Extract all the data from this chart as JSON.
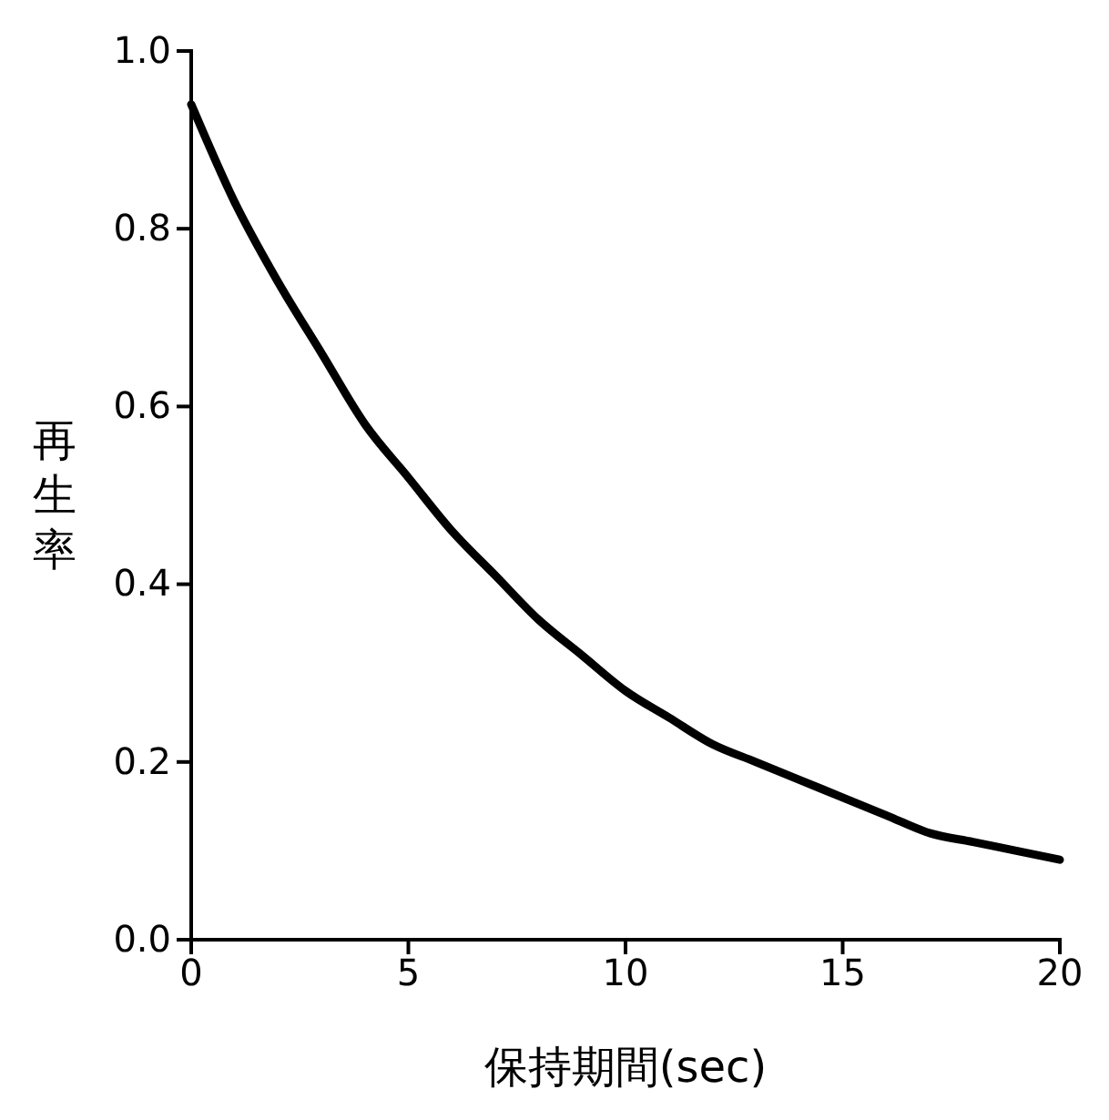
{
  "chart_data": {
    "type": "line",
    "xlabel": "保持期間(sec)",
    "ylabel": "再生率",
    "x": [
      0,
      1,
      2,
      3,
      4,
      5,
      6,
      7,
      8,
      9,
      10,
      11,
      12,
      13,
      14,
      15,
      16,
      17,
      18,
      19,
      20
    ],
    "series": [
      {
        "color": "#000000",
        "values": [
          0.94,
          0.83,
          0.74,
          0.66,
          0.58,
          0.52,
          0.46,
          0.41,
          0.36,
          0.32,
          0.28,
          0.25,
          0.22,
          0.2,
          0.18,
          0.16,
          0.14,
          0.12,
          0.11,
          0.1,
          0.09
        ]
      }
    ],
    "xlim": [
      0,
      20
    ],
    "xticks": [
      0,
      5,
      10,
      15,
      20
    ],
    "ylim": [
      0,
      1
    ],
    "yticks": [
      {
        "value": 0,
        "label": "0.0"
      },
      {
        "value": 0.2,
        "label": "0.2"
      },
      {
        "value": 0.4,
        "label": "0.4"
      },
      {
        "value": 0.6,
        "label": "0.6"
      },
      {
        "value": 0.8,
        "label": "0.8"
      },
      {
        "value": 1,
        "label": "1.0"
      }
    ],
    "marker": "none",
    "line_style": "solid"
  }
}
